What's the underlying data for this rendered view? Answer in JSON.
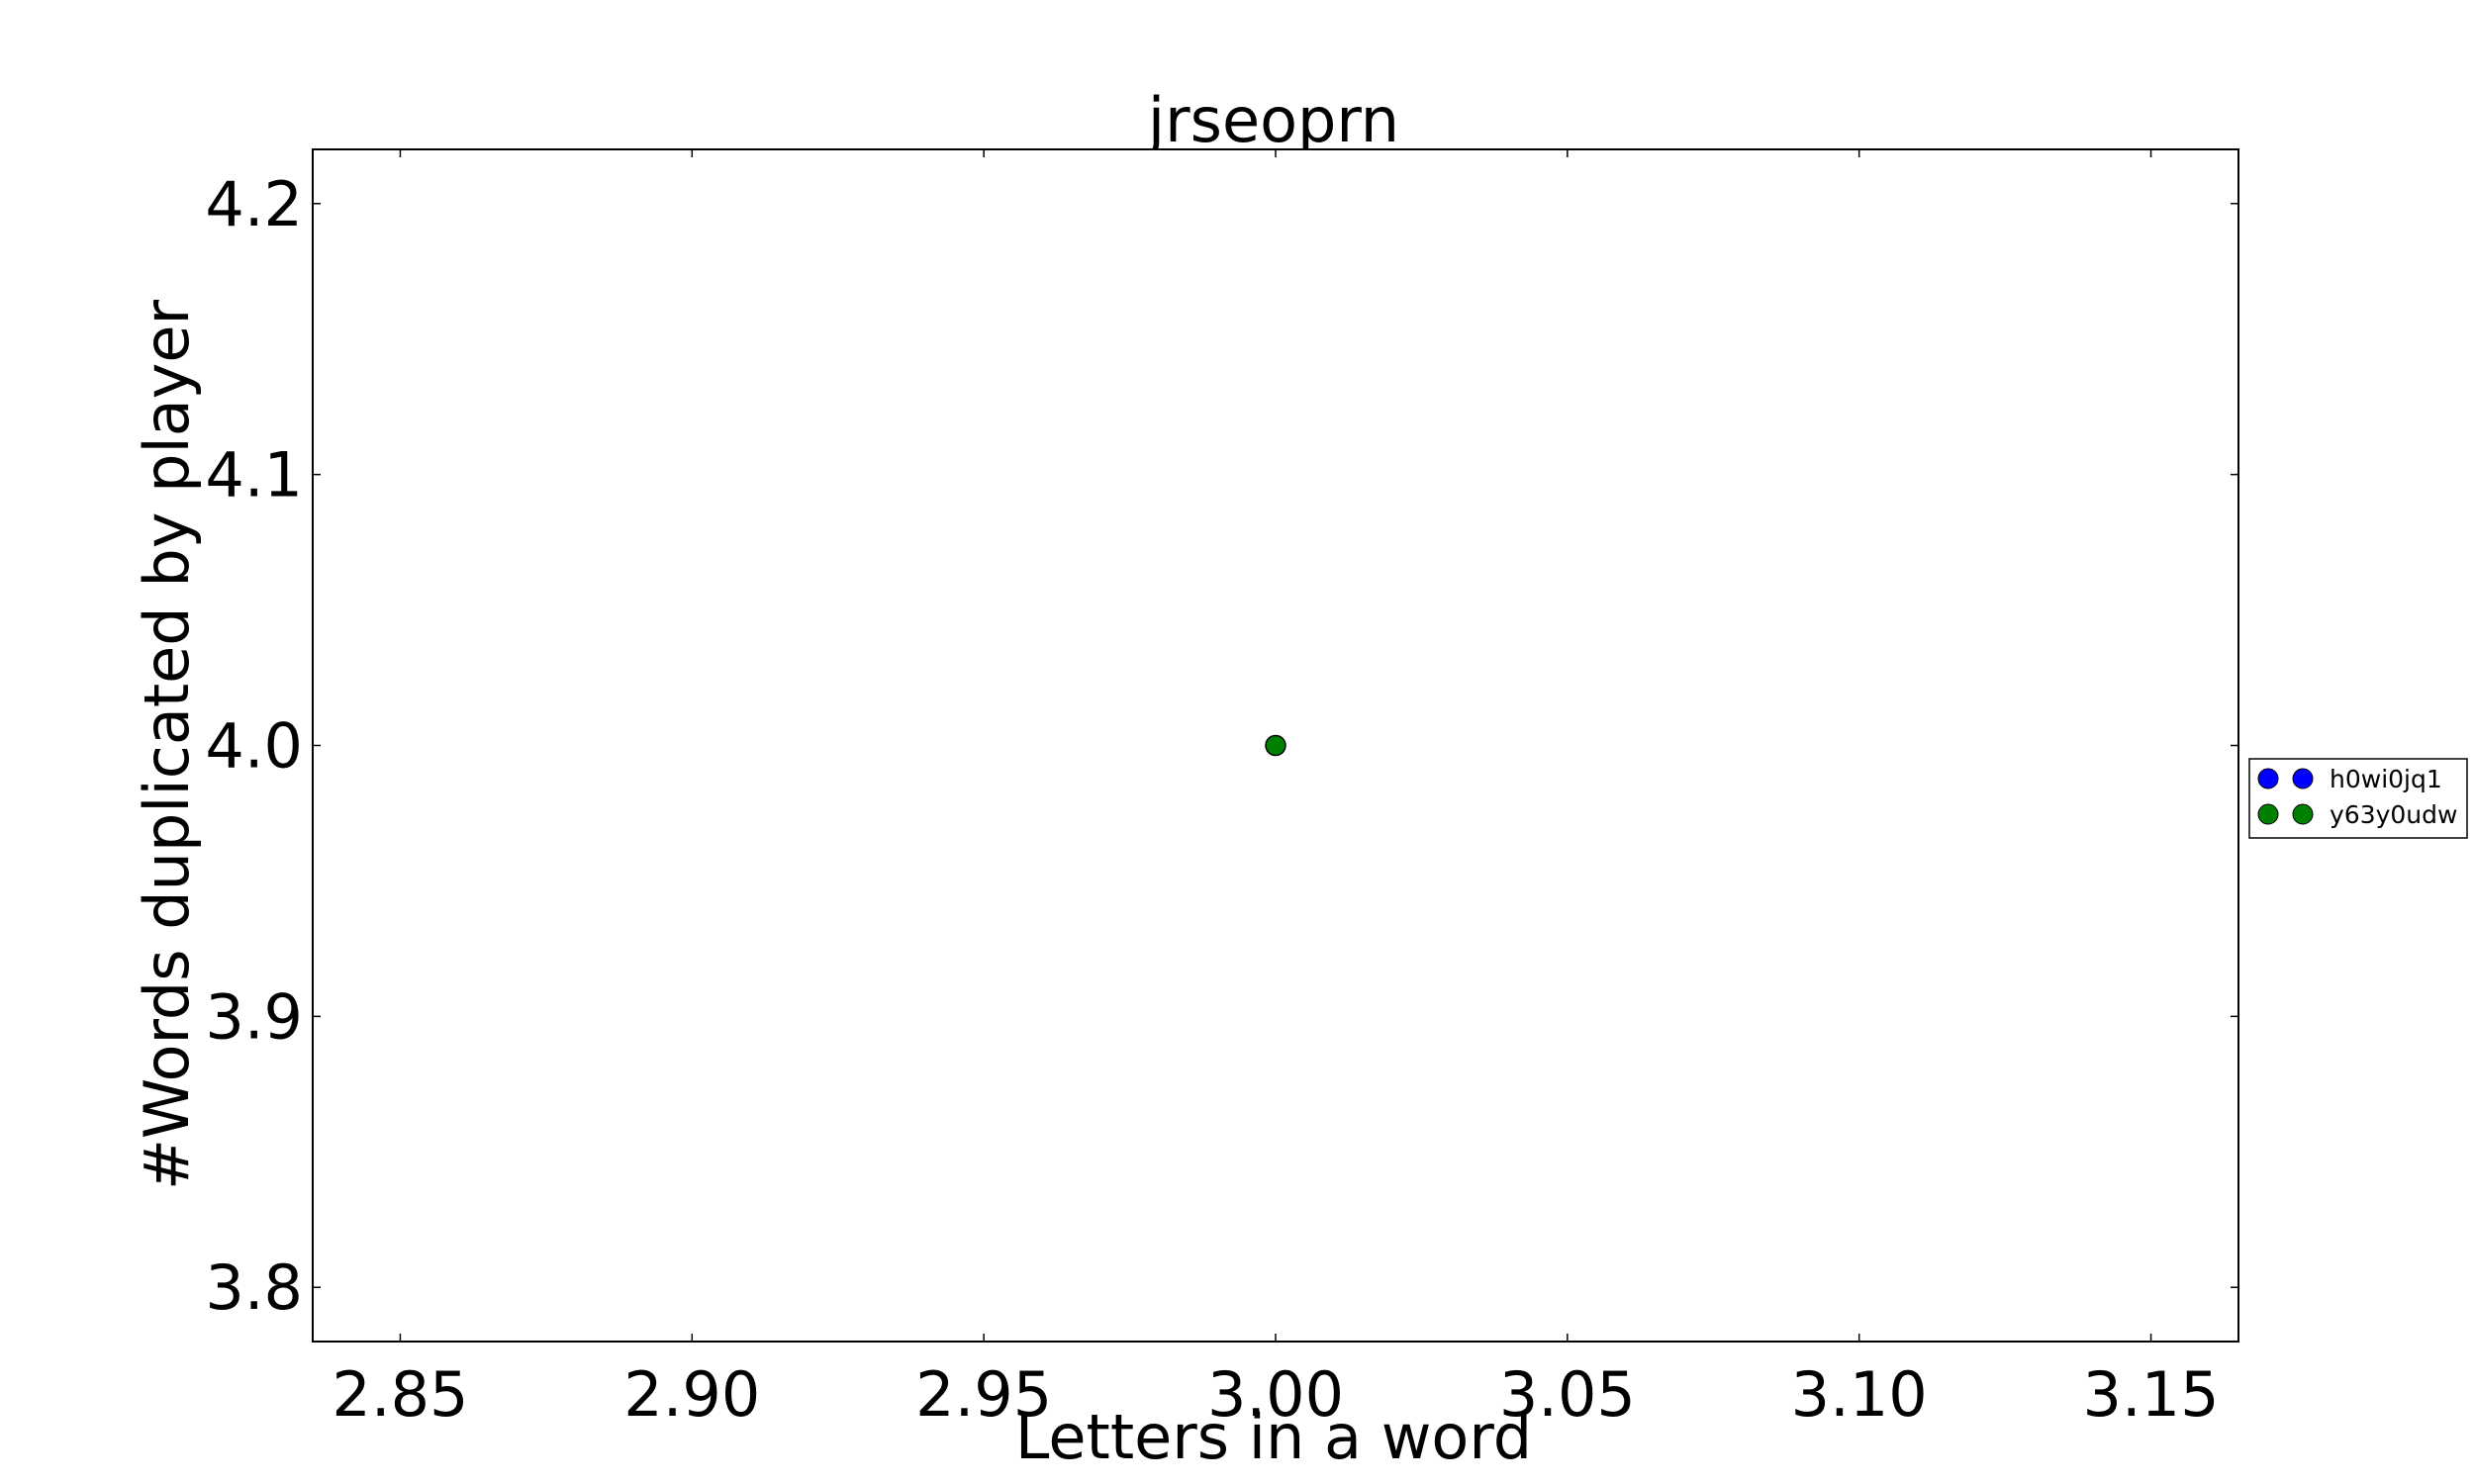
{
  "chart_data": {
    "type": "scatter",
    "title": "jrseoprn",
    "xlabel": "Letters in a word",
    "ylabel": "#Words duplicated by player",
    "xlim": [
      2.835,
      3.165
    ],
    "ylim": [
      3.78,
      4.22
    ],
    "x_ticks": [
      "2.85",
      "2.90",
      "2.95",
      "3.00",
      "3.05",
      "3.10",
      "3.15"
    ],
    "y_ticks": [
      "3.8",
      "3.9",
      "4.0",
      "4.1",
      "4.2"
    ],
    "grid": false,
    "legend_position": "right",
    "series": [
      {
        "name": "h0wi0jq1",
        "color": "#0000ff",
        "points": []
      },
      {
        "name": "y63y0udw",
        "color": "#008000",
        "points": [
          {
            "x": 3.0,
            "y": 4.0
          }
        ]
      }
    ]
  }
}
